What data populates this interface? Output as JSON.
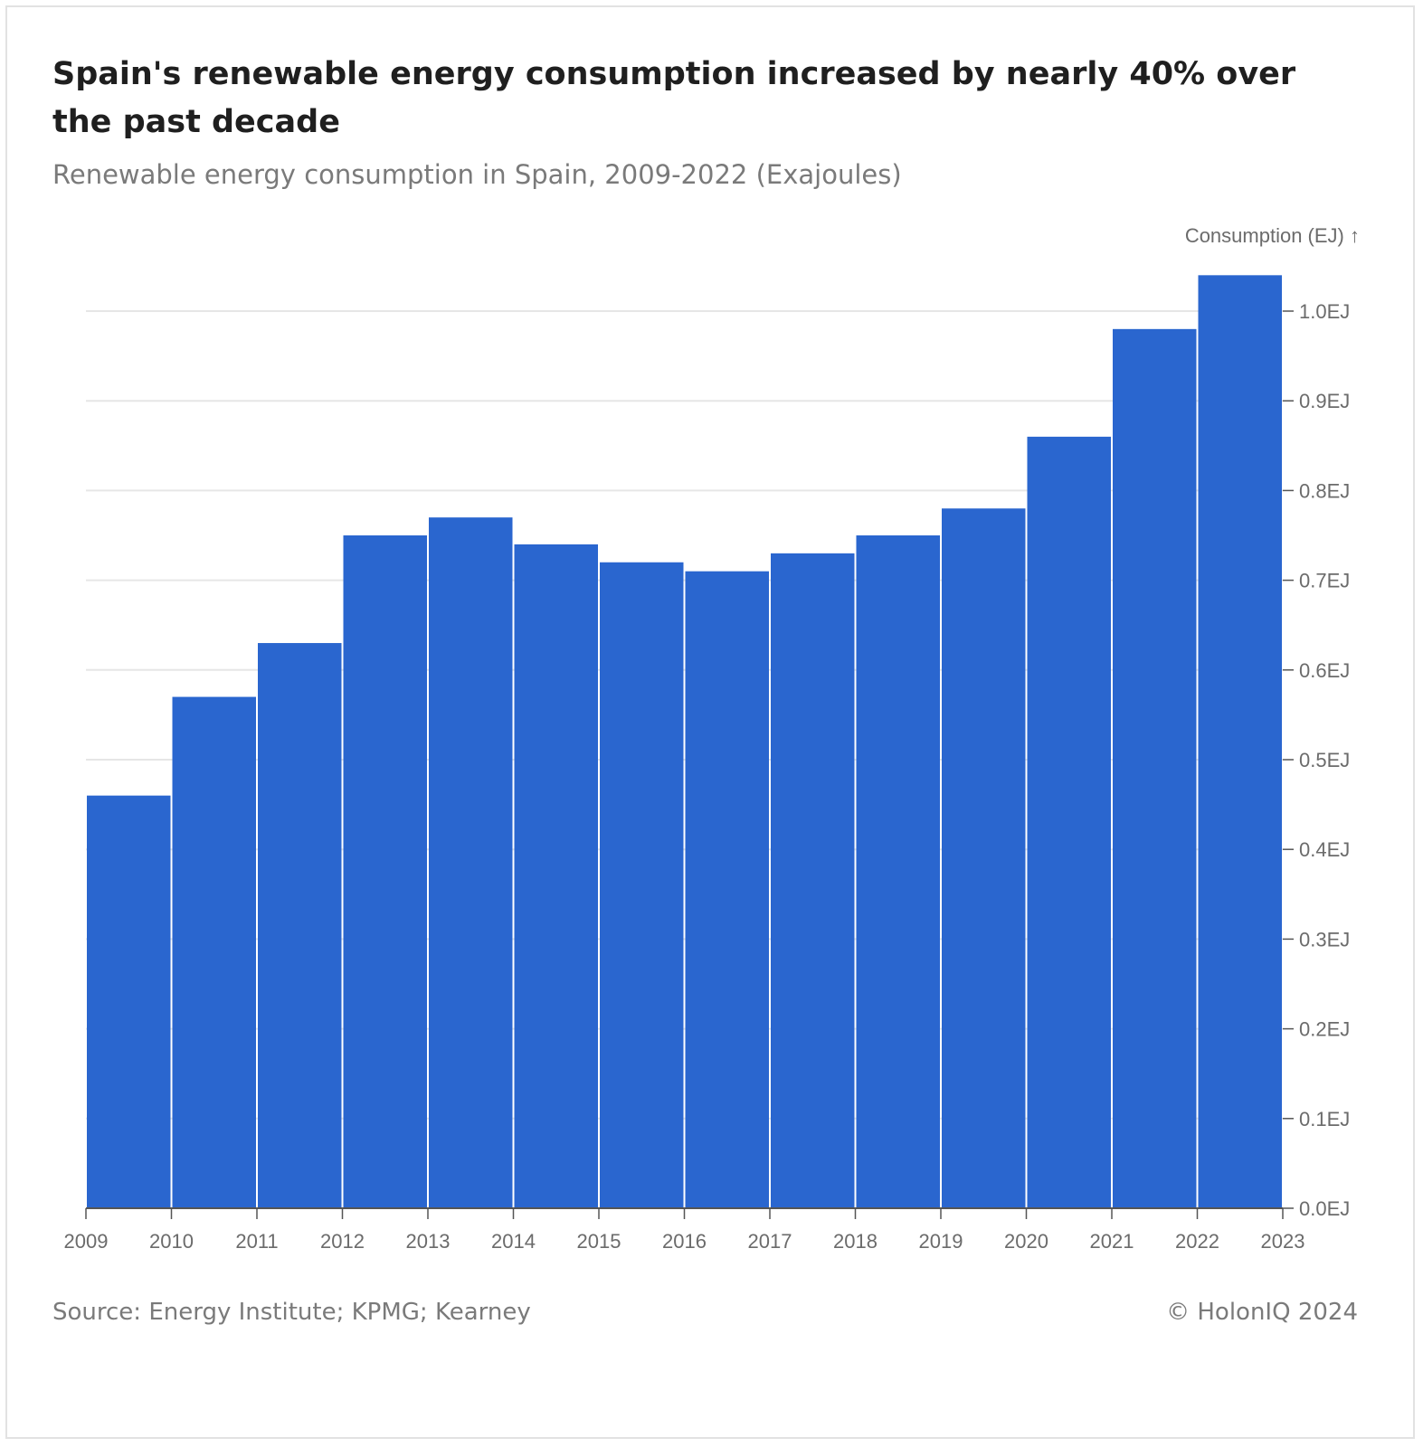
{
  "title": "Spain's renewable energy consumption increased by nearly 40% over the past decade",
  "subtitle": "Renewable energy consumption in Spain, 2009-2022 (Exajoules)",
  "source": "Source: Energy Institute; KPMG; Kearney",
  "copyright": "© HolonIQ 2024",
  "colors": {
    "bar": "#2a66cf",
    "grid": "#e6e6e6",
    "axis": "#555555",
    "text": "#6b6b6b"
  },
  "chart_data": {
    "type": "bar",
    "title": "",
    "xlabel": "",
    "ylabel": "Consumption (EJ) ↑",
    "y_unit_suffix": "EJ",
    "categories": [
      "2009",
      "2010",
      "2011",
      "2012",
      "2013",
      "2014",
      "2015",
      "2016",
      "2017",
      "2018",
      "2019",
      "2020",
      "2021",
      "2022"
    ],
    "x_tick_labels": [
      "2009",
      "2010",
      "2011",
      "2012",
      "2013",
      "2014",
      "2015",
      "2016",
      "2017",
      "2018",
      "2019",
      "2020",
      "2021",
      "2022",
      "2023"
    ],
    "values": [
      0.46,
      0.57,
      0.63,
      0.75,
      0.77,
      0.74,
      0.72,
      0.71,
      0.73,
      0.75,
      0.78,
      0.86,
      0.98,
      1.04
    ],
    "ylim": [
      0,
      1.0
    ],
    "y_ticks": [
      0.0,
      0.1,
      0.2,
      0.3,
      0.4,
      0.5,
      0.6,
      0.7,
      0.8,
      0.9,
      1.0
    ],
    "y_tick_labels": [
      "0.0EJ",
      "0.1EJ",
      "0.2EJ",
      "0.3EJ",
      "0.4EJ",
      "0.5EJ",
      "0.6EJ",
      "0.7EJ",
      "0.8EJ",
      "0.9EJ",
      "1.0EJ"
    ],
    "y_axis_side": "right",
    "grid": true
  }
}
